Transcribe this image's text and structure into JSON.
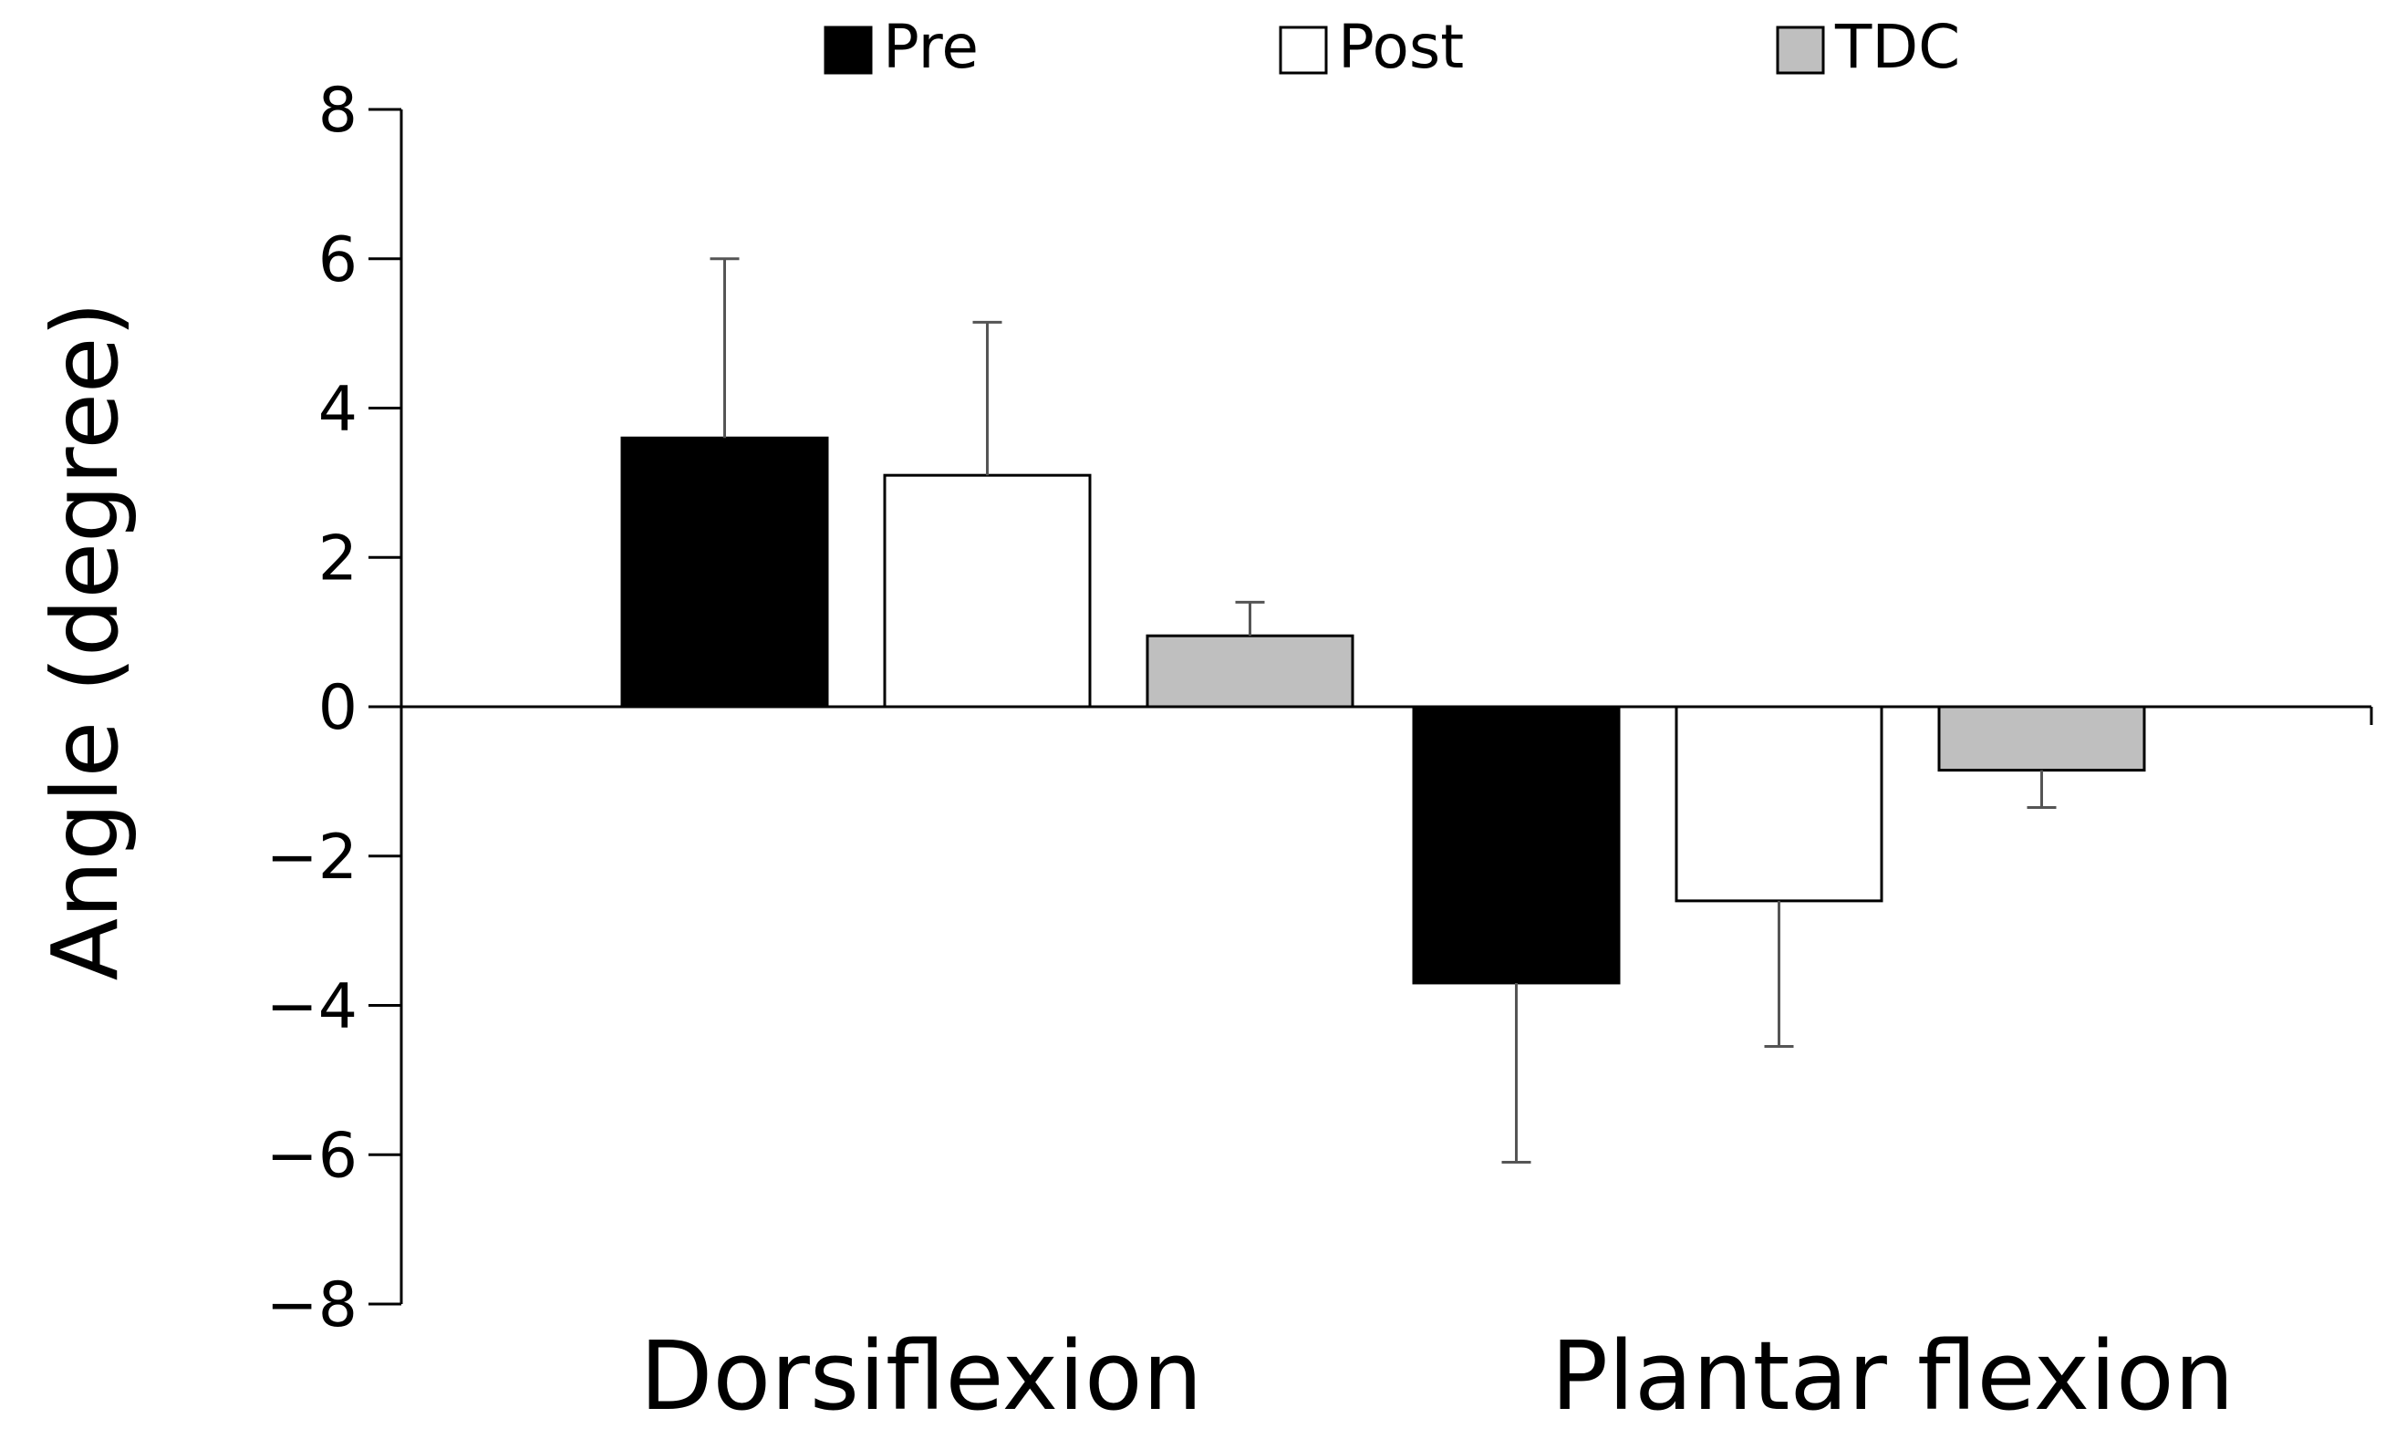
{
  "chart_data": {
    "type": "bar",
    "title": "",
    "xlabel": "",
    "ylabel": "Angle (degree)",
    "ylim": [
      -8,
      8
    ],
    "yticks": [
      8,
      6,
      4,
      2,
      0,
      -2,
      -4,
      -6,
      -8
    ],
    "ytick_labels": [
      "8",
      "6",
      "4",
      "2",
      "0",
      "−2",
      "−4",
      "−6",
      "−8"
    ],
    "categories": [
      "Dorsiflexion",
      "Plantar flexion"
    ],
    "series": [
      {
        "name": "Pre",
        "values": [
          3.6,
          -3.7
        ],
        "errors": [
          2.4,
          2.4
        ],
        "color": "#000000"
      },
      {
        "name": "Post",
        "values": [
          3.1,
          -2.6
        ],
        "errors": [
          2.05,
          1.95
        ],
        "color": "#ffffff"
      },
      {
        "name": "TDC",
        "values": [
          0.95,
          -0.85
        ],
        "errors": [
          0.45,
          0.5
        ],
        "color": "#bfbfbf"
      }
    ],
    "legend_position": "top",
    "grid": false
  }
}
